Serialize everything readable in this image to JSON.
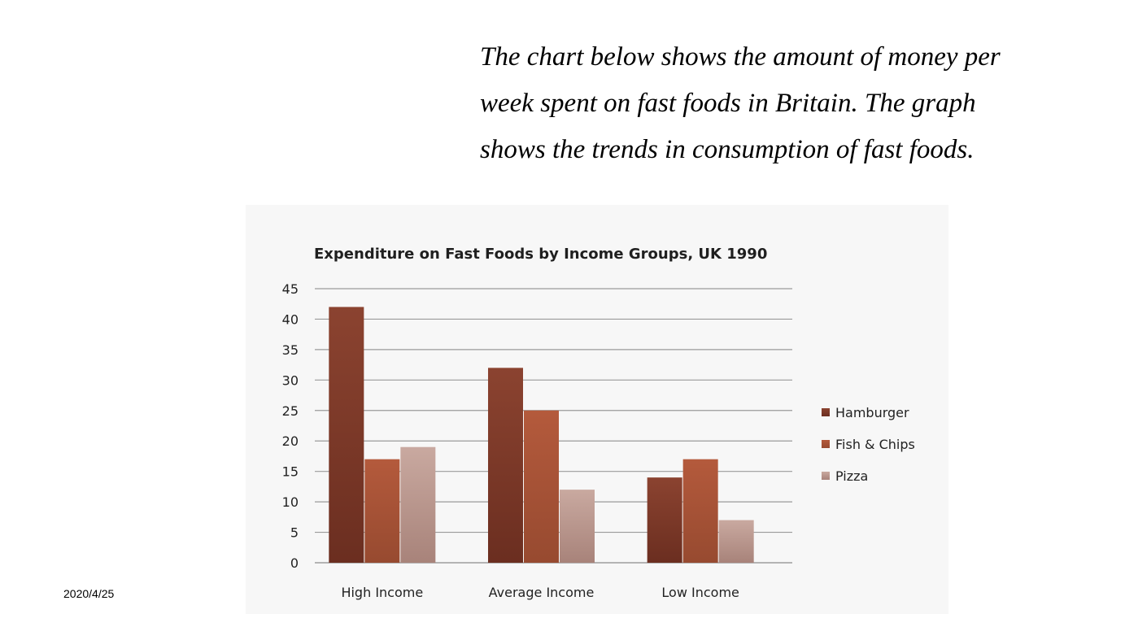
{
  "slide": {
    "intro_lines": [
      "The chart below shows the amount of money per",
      "week spent on fast foods in Britain. The graph",
      "shows the trends in consumption of fast foods."
    ],
    "date": "2020/4/25"
  },
  "chart_data": {
    "type": "bar",
    "title": "Expenditure on Fast Foods by Income Groups, UK 1990",
    "xlabel": "",
    "ylabel": "",
    "ylim": [
      0,
      45
    ],
    "yticks": [
      0,
      5,
      10,
      15,
      20,
      25,
      30,
      35,
      40,
      45
    ],
    "grid": true,
    "legend_position": "right",
    "categories": [
      "High Income",
      "Average Income",
      "Low Income"
    ],
    "series": [
      {
        "name": "Hamburger",
        "values": [
          42,
          32,
          14
        ],
        "color": "#8b4330",
        "color_dark": "#6b2e20"
      },
      {
        "name": "Fish & Chips",
        "values": [
          17,
          25,
          17
        ],
        "color": "#b45a3c",
        "color_dark": "#974a30"
      },
      {
        "name": "Pizza",
        "values": [
          19,
          12,
          7
        ],
        "color": "#c9a9a0",
        "color_dark": "#a8837a"
      }
    ]
  }
}
